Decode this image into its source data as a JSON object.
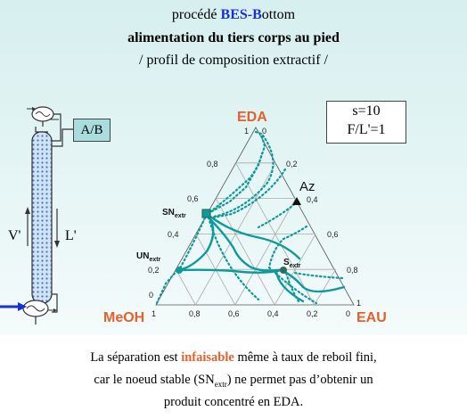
{
  "title": {
    "line1_prefix": "procédé ",
    "line1_accent": "BES-B",
    "line1_suffix": "ottom",
    "line2": "alimentation du tiers corps au pied",
    "line3": "/ profil de composition extractif /"
  },
  "params_box": {
    "s": "s=10",
    "ratio": "F/L'=1"
  },
  "column": {
    "feed_label": "A/B",
    "vapor_label": "V'",
    "liquid_label": "L'"
  },
  "vertices": {
    "top": "EDA",
    "left": "MeOH",
    "right": "EAU"
  },
  "ticks": {
    "left_edge": [
      "0,2",
      "0,4",
      "0,6",
      "0,8"
    ],
    "right_edge": [
      "0,2",
      "0,4",
      "0,6",
      "0,8"
    ],
    "bottom_edge": [
      "0,8",
      "0,6",
      "0,4",
      "0,2"
    ],
    "top_vertex_left": "1",
    "top_vertex_right": "0",
    "left_vertex_top": "0",
    "left_vertex_bottom": "1",
    "right_vertex_top": "1",
    "right_vertex_bottom": "0"
  },
  "points": {
    "sn": {
      "label": "SN",
      "sub": "extr"
    },
    "un": {
      "label": "UN",
      "sub": "extr"
    },
    "s": {
      "label": "S",
      "sub": "extr"
    },
    "az": {
      "label": "Az"
    }
  },
  "colors": {
    "curve": "#0e9a9a",
    "accent_red": "#e2612d",
    "accent_blue": "#1a2fd6",
    "dark_green": "#2e6b5e"
  },
  "caption": {
    "l1_prefix": "La séparation est ",
    "l1_accent": "infaisable",
    "l1_suffix": " même à taux de reboil fini,",
    "l2_prefix": "car le noeud stable (SN",
    "l2_sub": "extr",
    "l2_suffix": ")  ne permet pas d’obtenir un",
    "l3": "produit concentré en EDA."
  }
}
